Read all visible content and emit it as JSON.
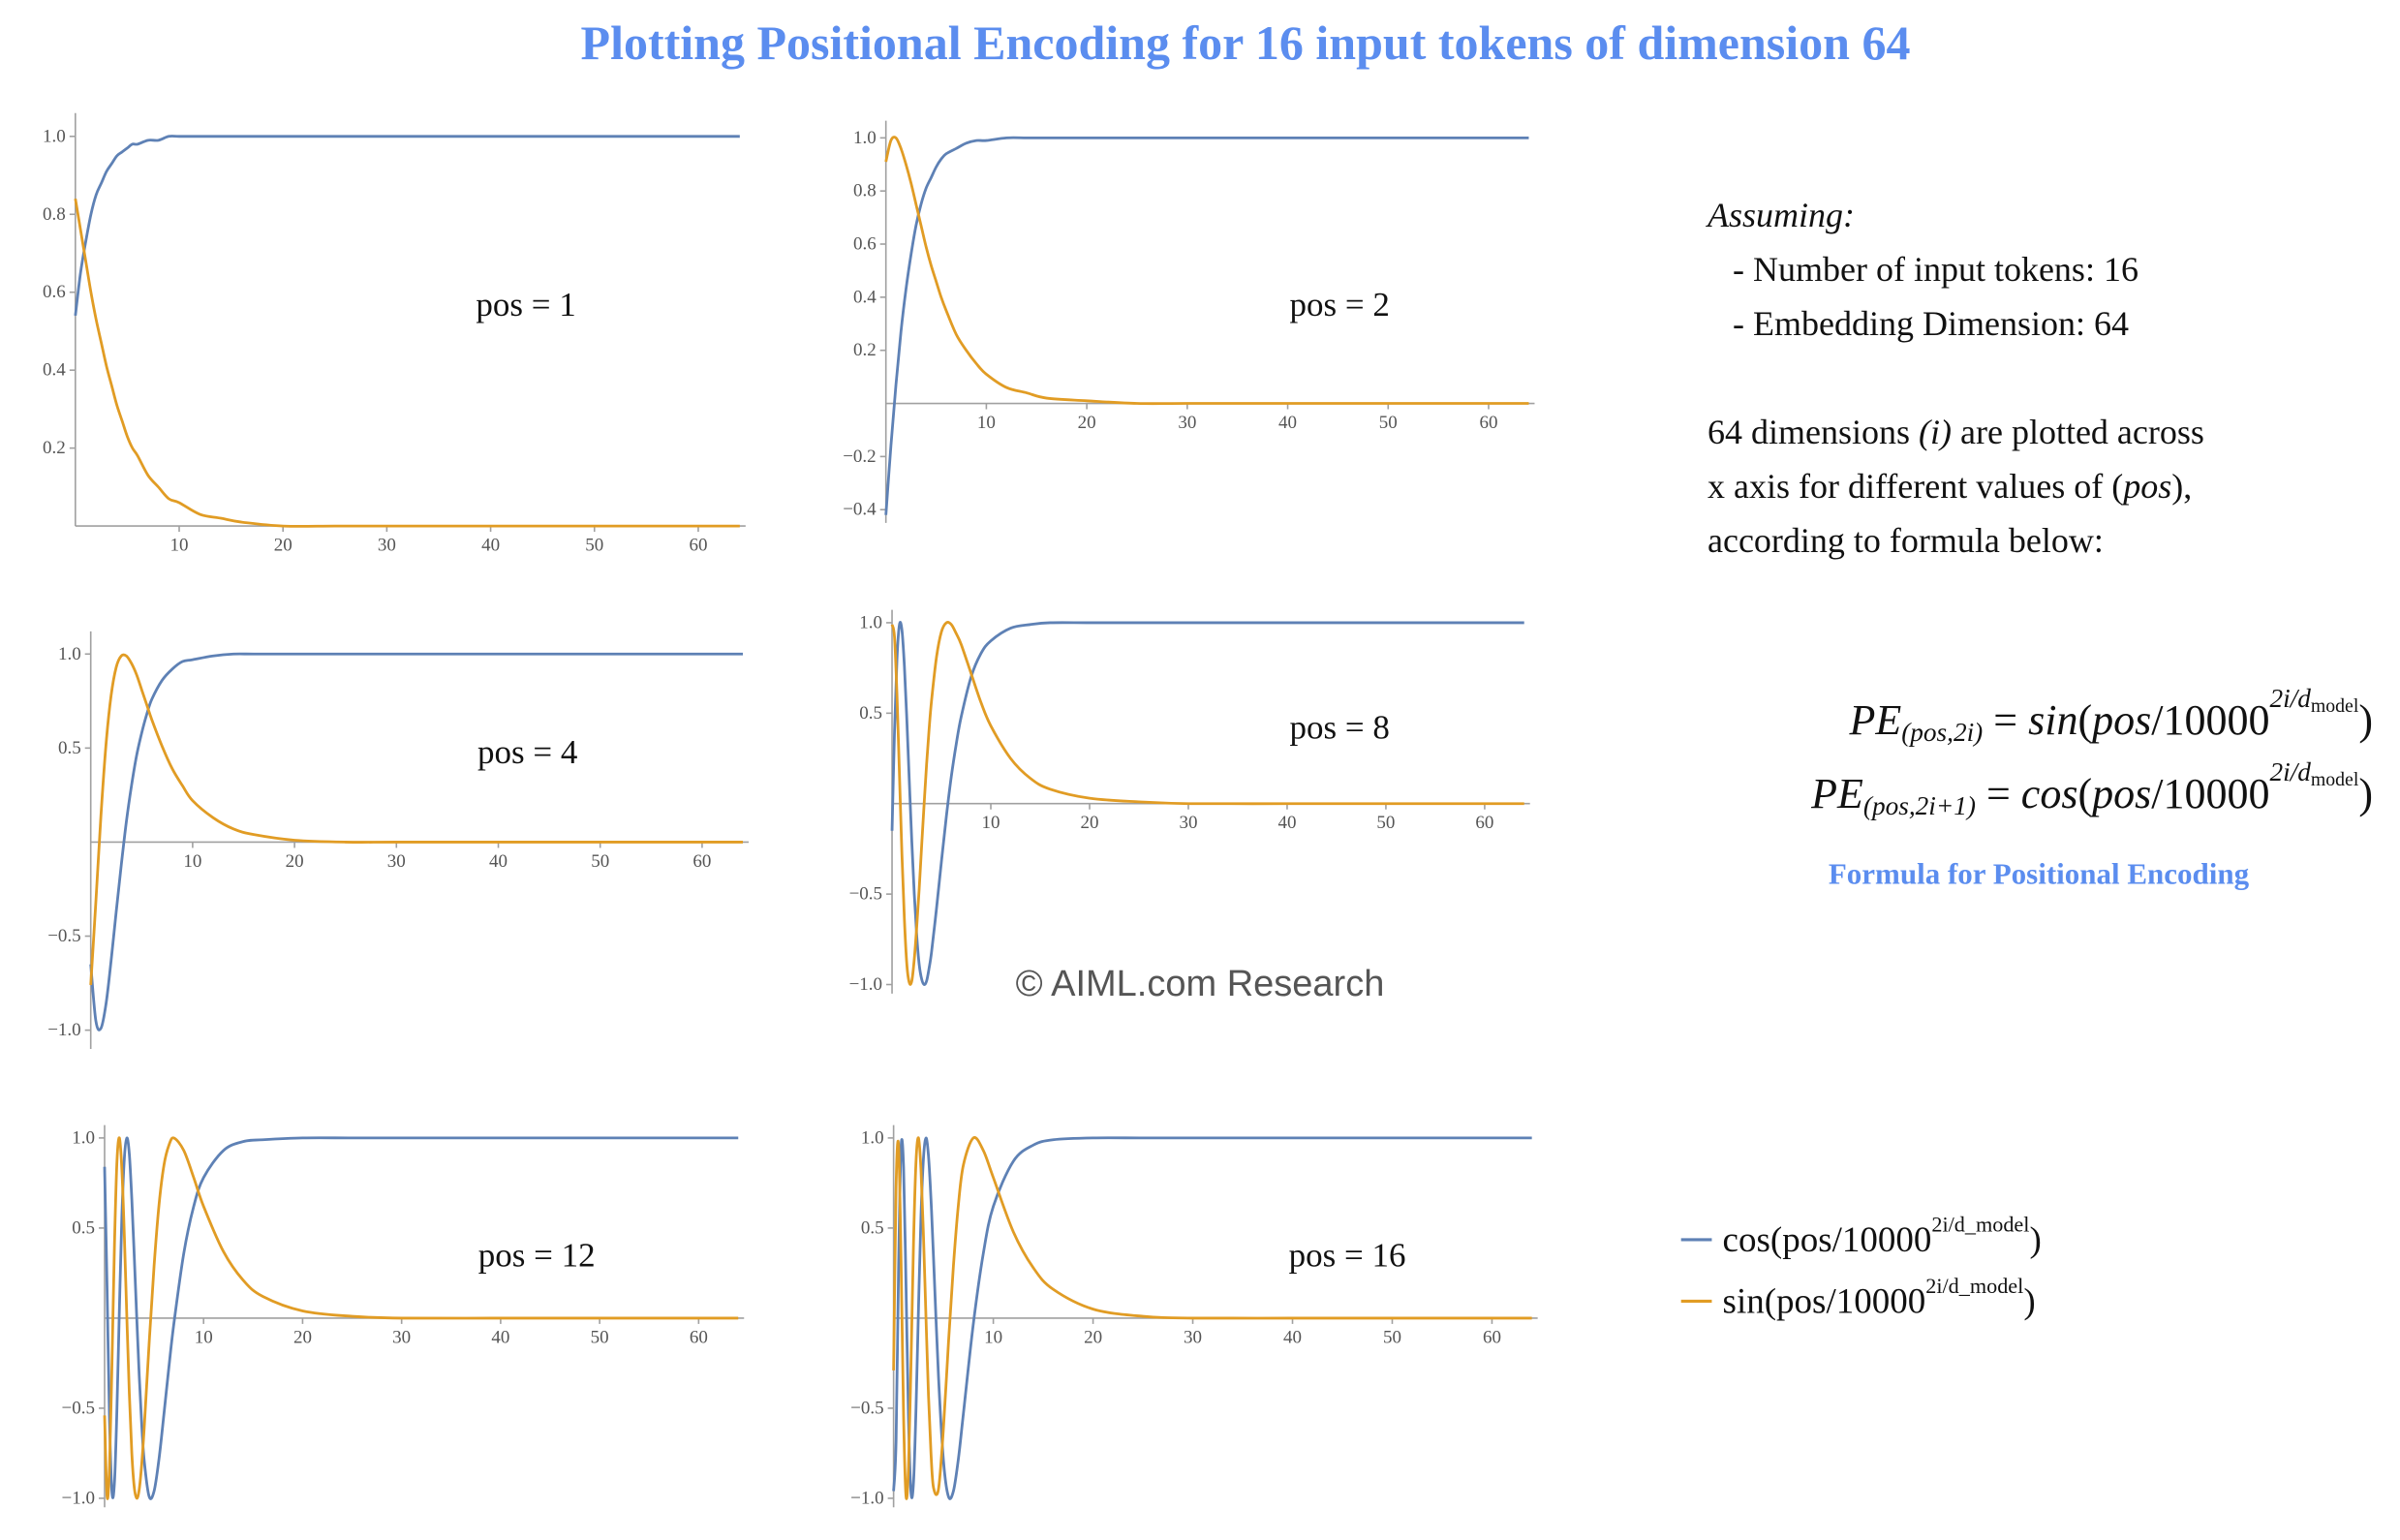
{
  "header": {
    "title": "Plotting Positional Encoding for 16 input tokens of dimension 64"
  },
  "chart_data": [
    {
      "type": "line",
      "annotation": "pos = 1",
      "x": [
        0,
        0.5,
        1,
        1.5,
        2,
        2.5,
        3,
        3.5,
        4,
        4.5,
        5,
        5.5,
        6,
        7,
        8,
        9,
        10,
        12,
        14,
        16,
        20,
        25,
        30,
        40,
        50,
        64
      ],
      "series": [
        {
          "color": "#5e81b5",
          "values": [
            0.54,
            0.65,
            0.73,
            0.8,
            0.85,
            0.88,
            0.91,
            0.93,
            0.95,
            0.96,
            0.97,
            0.98,
            0.98,
            0.99,
            0.99,
            1,
            1,
            1,
            1,
            1,
            1,
            1,
            1,
            1,
            1,
            1
          ]
        },
        {
          "color": "#e19c24",
          "values": [
            0.84,
            0.76,
            0.68,
            0.6,
            0.53,
            0.47,
            0.41,
            0.36,
            0.31,
            0.27,
            0.23,
            0.2,
            0.18,
            0.13,
            0.1,
            0.07,
            0.06,
            0.03,
            0.02,
            0.01,
            0,
            0,
            0,
            0,
            0,
            0
          ]
        }
      ],
      "xlim": [
        0,
        64
      ],
      "ylim": [
        0,
        1.05
      ],
      "xticks": [
        10,
        20,
        30,
        40,
        50,
        60
      ],
      "yticks": [
        0.2,
        0.4,
        0.6,
        0.8,
        {
          "value": 1,
          "label": "1.0"
        }
      ]
    },
    {
      "type": "line",
      "annotation": "pos = 2",
      "x": [
        0,
        0.5,
        1,
        1.5,
        2,
        2.5,
        3,
        3.5,
        4,
        4.5,
        5,
        5.5,
        6,
        7,
        8,
        9,
        10,
        12,
        14,
        16,
        20,
        25,
        30,
        40,
        50,
        64
      ],
      "series": [
        {
          "color": "#5e81b5",
          "values": [
            -0.42,
            -0.16,
            0.07,
            0.27,
            0.43,
            0.56,
            0.67,
            0.75,
            0.81,
            0.85,
            0.89,
            0.92,
            0.94,
            0.96,
            0.98,
            0.99,
            0.99,
            1,
            1,
            1,
            1,
            1,
            1,
            1,
            1,
            1
          ]
        },
        {
          "color": "#e19c24",
          "values": [
            0.91,
            0.99,
            1,
            0.96,
            0.9,
            0.83,
            0.75,
            0.67,
            0.59,
            0.52,
            0.46,
            0.4,
            0.35,
            0.26,
            0.2,
            0.15,
            0.11,
            0.06,
            0.04,
            0.02,
            0.01,
            0,
            0,
            0,
            0,
            0
          ]
        }
      ],
      "xlim": [
        0,
        64
      ],
      "ylim": [
        -0.45,
        1.05
      ],
      "xticks": [
        10,
        20,
        30,
        40,
        50,
        60
      ],
      "yticks": [
        {
          "value": -0.4,
          "label": "−0.4"
        },
        {
          "value": -0.2,
          "label": "−0.2"
        },
        0.2,
        0.4,
        0.6,
        0.8,
        {
          "value": 1,
          "label": "1.0"
        }
      ]
    },
    {
      "type": "line",
      "annotation": "pos = 4",
      "x": [
        0,
        0.5,
        1,
        1.5,
        2,
        2.5,
        3,
        3.5,
        4,
        4.5,
        5,
        5.5,
        6,
        7,
        8,
        9,
        10,
        12,
        14,
        16,
        20,
        25,
        30,
        40,
        50,
        64
      ],
      "series": [
        {
          "color": "#5e81b5",
          "values": [
            -0.65,
            -0.95,
            -0.99,
            -0.86,
            -0.63,
            -0.37,
            -0.12,
            0.11,
            0.3,
            0.46,
            0.58,
            0.68,
            0.76,
            0.86,
            0.92,
            0.96,
            0.97,
            0.99,
            1,
            1,
            1,
            1,
            1,
            1,
            1,
            1
          ]
        },
        {
          "color": "#e19c24",
          "values": [
            -0.76,
            -0.32,
            0.14,
            0.52,
            0.78,
            0.93,
            0.99,
            0.99,
            0.95,
            0.89,
            0.81,
            0.73,
            0.65,
            0.51,
            0.39,
            0.3,
            0.22,
            0.13,
            0.07,
            0.04,
            0.01,
            0,
            0,
            0,
            0,
            0
          ]
        }
      ],
      "xlim": [
        0,
        64
      ],
      "ylim": [
        -1.1,
        1.1
      ],
      "xticks": [
        10,
        20,
        30,
        40,
        50,
        60
      ],
      "yticks": [
        {
          "value": -1,
          "label": "−1.0"
        },
        {
          "value": -0.5,
          "label": "−0.5"
        },
        0.5,
        {
          "value": 1,
          "label": "1.0"
        }
      ]
    },
    {
      "type": "line",
      "annotation": "pos = 8",
      "x": [
        0,
        0.25,
        0.5,
        0.75,
        1,
        1.25,
        1.5,
        1.75,
        2,
        2.25,
        2.5,
        2.75,
        3,
        3.25,
        3.5,
        3.75,
        4,
        4.5,
        5,
        5.5,
        6,
        6.5,
        7,
        8,
        9,
        10,
        12,
        14,
        16,
        20,
        25,
        30,
        40,
        50,
        64
      ],
      "series": [
        {
          "color": "#5e81b5",
          "values": [
            -0.15,
            0.4,
            0.8,
            0.99,
            0.96,
            0.76,
            0.46,
            0.12,
            -0.21,
            -0.5,
            -0.73,
            -0.89,
            -0.97,
            -1,
            -0.98,
            -0.91,
            -0.82,
            -0.58,
            -0.32,
            -0.07,
            0.15,
            0.33,
            0.48,
            0.7,
            0.83,
            0.9,
            0.97,
            0.99,
            1,
            1,
            1,
            1,
            1,
            1,
            1
          ]
        },
        {
          "color": "#e19c24",
          "values": [
            0.99,
            0.92,
            0.6,
            0.16,
            -0.28,
            -0.64,
            -0.89,
            -0.99,
            -0.98,
            -0.86,
            -0.68,
            -0.47,
            -0.23,
            0,
            0.22,
            0.41,
            0.57,
            0.81,
            0.95,
            1,
            0.99,
            0.94,
            0.88,
            0.72,
            0.56,
            0.43,
            0.25,
            0.14,
            0.08,
            0.03,
            0.01,
            0,
            0,
            0,
            0
          ]
        }
      ],
      "xlim": [
        0,
        64
      ],
      "ylim": [
        -1.05,
        1.05
      ],
      "xticks": [
        10,
        20,
        30,
        40,
        50,
        60
      ],
      "yticks": [
        {
          "value": -1,
          "label": "−1.0"
        },
        {
          "value": -0.5,
          "label": "−0.5"
        },
        0.5,
        {
          "value": 1,
          "label": "1.0"
        }
      ]
    },
    {
      "type": "line",
      "annotation": "pos = 12",
      "x": [
        0,
        0.25,
        0.5,
        0.75,
        1,
        1.25,
        1.5,
        1.75,
        2,
        2.25,
        2.5,
        2.75,
        3,
        3.25,
        3.5,
        3.75,
        4,
        4.5,
        5,
        5.5,
        6,
        6.5,
        7,
        8,
        9,
        10,
        12,
        14,
        16,
        20,
        25,
        30,
        40,
        50,
        64
      ],
      "series": [
        {
          "color": "#5e81b5",
          "values": [
            0.84,
            0.17,
            -0.57,
            -0.97,
            -0.91,
            -0.5,
            0.06,
            0.57,
            0.89,
            1,
            0.91,
            0.66,
            0.34,
            0,
            -0.32,
            -0.59,
            -0.79,
            -0.99,
            -0.96,
            -0.78,
            -0.53,
            -0.27,
            -0.03,
            0.36,
            0.62,
            0.78,
            0.93,
            0.98,
            0.99,
            1,
            1,
            1,
            1,
            1,
            1
          ]
        },
        {
          "color": "#e19c24",
          "values": [
            -0.54,
            -0.99,
            -0.82,
            -0.24,
            0.41,
            0.87,
            1,
            0.82,
            0.45,
            0,
            -0.42,
            -0.75,
            -0.94,
            -1,
            -0.95,
            -0.81,
            -0.61,
            -0.14,
            0.29,
            0.63,
            0.85,
            0.96,
            1,
            0.93,
            0.78,
            0.62,
            0.37,
            0.21,
            0.12,
            0.04,
            0.01,
            0,
            0,
            0,
            0
          ]
        }
      ],
      "xlim": [
        0,
        64
      ],
      "ylim": [
        -1.05,
        1.05
      ],
      "xticks": [
        10,
        20,
        30,
        40,
        50,
        60
      ],
      "yticks": [
        {
          "value": -1,
          "label": "−1.0"
        },
        {
          "value": -0.5,
          "label": "−0.5"
        },
        0.5,
        {
          "value": 1,
          "label": "1.0"
        }
      ]
    },
    {
      "type": "line",
      "annotation": "pos = 16",
      "x": [
        0,
        0.25,
        0.5,
        0.75,
        1,
        1.25,
        1.5,
        1.75,
        2,
        2.25,
        2.5,
        2.75,
        3,
        3.25,
        3.5,
        3.75,
        4,
        4.5,
        5,
        5.5,
        6,
        6.5,
        7,
        8,
        9,
        10,
        12,
        14,
        16,
        20,
        25,
        30,
        40,
        50,
        64
      ],
      "series": [
        {
          "color": "#5e81b5",
          "values": [
            -0.96,
            -0.68,
            0.28,
            0.95,
            0.84,
            0.17,
            -0.57,
            -0.97,
            -0.91,
            -0.5,
            0.06,
            0.57,
            0.89,
            1,
            0.9,
            0.66,
            0.34,
            -0.32,
            -0.79,
            -0.99,
            -0.96,
            -0.78,
            -0.53,
            -0.03,
            0.36,
            0.62,
            0.87,
            0.96,
            0.99,
            1,
            1,
            1,
            1,
            1,
            1
          ]
        },
        {
          "color": "#e19c24",
          "values": [
            -0.29,
            0.73,
            0.96,
            0.32,
            -0.54,
            -0.99,
            -0.82,
            -0.24,
            0.42,
            0.87,
            1,
            0.82,
            0.45,
            0,
            -0.43,
            -0.75,
            -0.94,
            -0.95,
            -0.61,
            -0.14,
            0.29,
            0.63,
            0.85,
            1,
            0.93,
            0.78,
            0.48,
            0.28,
            0.16,
            0.05,
            0.01,
            0,
            0,
            0,
            0
          ]
        }
      ],
      "xlim": [
        0,
        64
      ],
      "ylim": [
        -1.05,
        1.05
      ],
      "xticks": [
        10,
        20,
        30,
        40,
        50,
        60
      ],
      "yticks": [
        {
          "value": -1,
          "label": "−1.0"
        },
        {
          "value": -0.5,
          "label": "−0.5"
        },
        0.5,
        {
          "value": 1,
          "label": "1.0"
        }
      ]
    }
  ],
  "notes": {
    "assuming": "Assuming:",
    "bullets": [
      "- Number of input tokens: 16",
      "- Embedding Dimension: 64"
    ],
    "paragraph": [
      [
        {
          "t": "64 dimensions ",
          "s": "n"
        },
        {
          "t": "(i)",
          "s": "i"
        },
        {
          "t": " are plotted across",
          "s": "n"
        }
      ],
      [
        {
          "t": "x axis for different values of (",
          "s": "n"
        },
        {
          "t": "pos",
          "s": "i"
        },
        {
          "t": "),",
          "s": "n"
        }
      ],
      [
        {
          "t": "according to formula below:",
          "s": "n"
        }
      ]
    ]
  },
  "formulas": [
    [
      {
        "t": "PE",
        "s": "i"
      },
      {
        "t": "(pos,2i)",
        "s": "sub"
      },
      {
        "t": " = ",
        "s": "n"
      },
      {
        "t": "sin",
        "s": "i"
      },
      {
        "t": "(",
        "s": "n"
      },
      {
        "t": "pos",
        "s": "i"
      },
      {
        "t": "/10000",
        "s": "n"
      },
      {
        "t": "2i/d",
        "s": "supi"
      },
      {
        "t": "model",
        "s": "ss"
      },
      {
        "t": ")",
        "s": "n"
      }
    ],
    [
      {
        "t": "PE",
        "s": "i"
      },
      {
        "t": "(pos,2i+1)",
        "s": "sub"
      },
      {
        "t": " = ",
        "s": "n"
      },
      {
        "t": "cos",
        "s": "i"
      },
      {
        "t": "(",
        "s": "n"
      },
      {
        "t": "pos",
        "s": "i"
      },
      {
        "t": "/10000",
        "s": "n"
      },
      {
        "t": "2i/d",
        "s": "supi"
      },
      {
        "t": "model",
        "s": "ss"
      },
      {
        "t": ")",
        "s": "n"
      }
    ]
  ],
  "formula_caption": "Formula for Positional Encoding",
  "watermark": "© AIML.com Research",
  "legend": [
    [
      {
        "t": "cos(pos/10000",
        "s": "n"
      },
      {
        "t": "2i/d_model",
        "s": "sup"
      },
      {
        "t": ")",
        "s": "n"
      }
    ],
    [
      {
        "t": "sin(pos/10000",
        "s": "n"
      },
      {
        "t": "2i/d_model",
        "s": "sup"
      },
      {
        "t": ")",
        "s": "n"
      }
    ]
  ]
}
